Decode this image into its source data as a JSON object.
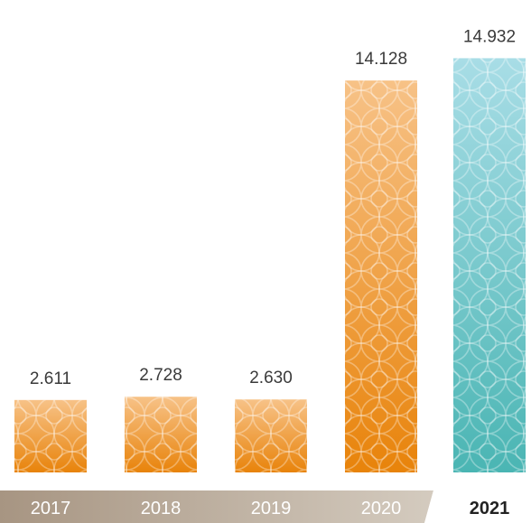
{
  "chart_data": {
    "type": "bar",
    "title": "",
    "xlabel": "",
    "ylabel": "",
    "categories": [
      "2017",
      "2018",
      "2019",
      "2020",
      "2021"
    ],
    "values": [
      2.611,
      2.728,
      2.63,
      14.128,
      14.932
    ],
    "value_labels": [
      "2.611",
      "2.728",
      "2.630",
      "14.128",
      "14.932"
    ],
    "highlighted_category": "2021",
    "ylim": [
      0,
      15.5
    ],
    "grid": false,
    "legend": "none",
    "colors": {
      "bar_top": "#f7c287",
      "bar_bottom": "#e8830a",
      "highlight_top": "#a8dde6",
      "highlight_bottom": "#4ab5b3",
      "axis_band_left": "#a79582",
      "axis_band_right": "#d4cbbf",
      "axis_band_highlight": "#ffffff"
    }
  }
}
